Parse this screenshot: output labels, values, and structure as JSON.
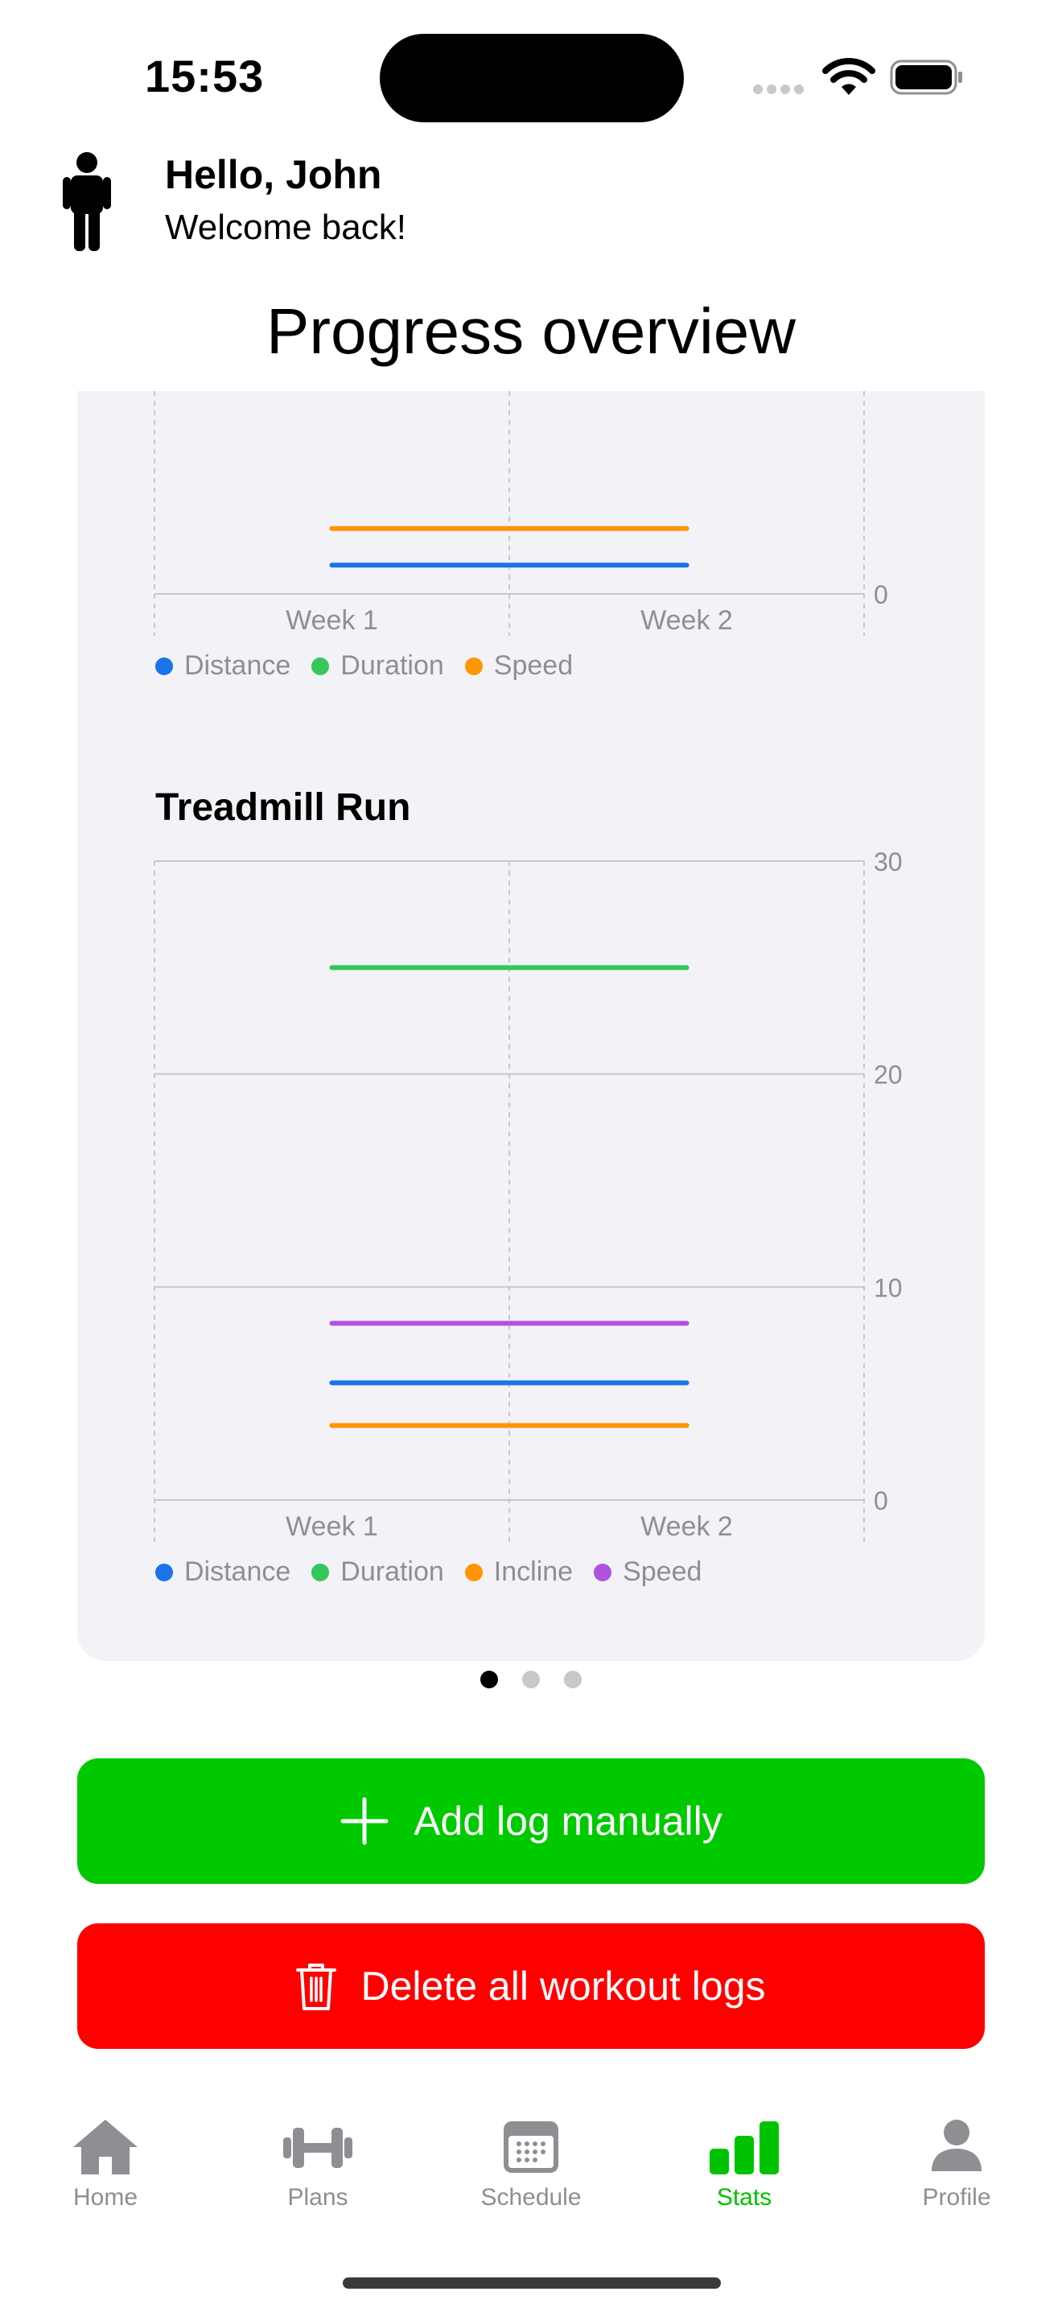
{
  "status_bar": {
    "time": "15:53"
  },
  "header": {
    "greeting": "Hello, John",
    "subtitle": "Welcome back!"
  },
  "page_title": "Progress overview",
  "colors": {
    "distance": "#1a73e8",
    "duration": "#34c759",
    "speed_incline_orange": "#ff9500",
    "speed_purple": "#af52de",
    "accent_green": "#00c900",
    "danger_red": "#ff0000"
  },
  "chart_data": [
    {
      "type": "line",
      "title": "",
      "categories": [
        "Week 1",
        "Week 2"
      ],
      "y_ticks_visible": [
        "0"
      ],
      "series": [
        {
          "name": "Distance",
          "values": [
            2.2,
            2.2
          ]
        },
        {
          "name": "Duration",
          "values": null
        },
        {
          "name": "Speed",
          "values": [
            5,
            5
          ]
        }
      ],
      "legend": [
        "Distance",
        "Duration",
        "Speed"
      ]
    },
    {
      "type": "line",
      "title": "Treadmill Run",
      "categories": [
        "Week 1",
        "Week 2"
      ],
      "ylim": [
        0,
        30
      ],
      "y_ticks": [
        "0",
        "10",
        "20",
        "30"
      ],
      "series": [
        {
          "name": "Distance",
          "values": [
            5.5,
            5.5
          ]
        },
        {
          "name": "Duration",
          "values": [
            25,
            25
          ]
        },
        {
          "name": "Incline",
          "values": [
            3.5,
            3.5
          ]
        },
        {
          "name": "Speed",
          "values": [
            8.3,
            8.3
          ]
        }
      ],
      "legend": [
        "Distance",
        "Duration",
        "Incline",
        "Speed"
      ]
    }
  ],
  "pager": {
    "count": 3,
    "active": 0
  },
  "buttons": {
    "add_log": "Add log manually",
    "delete_all": "Delete all workout logs"
  },
  "tabs": [
    {
      "label": "Home",
      "icon": "house-icon"
    },
    {
      "label": "Plans",
      "icon": "dumbbell-icon"
    },
    {
      "label": "Schedule",
      "icon": "calendar-icon"
    },
    {
      "label": "Stats",
      "icon": "bar-chart-icon",
      "active": true
    },
    {
      "label": "Profile",
      "icon": "person-icon"
    }
  ]
}
